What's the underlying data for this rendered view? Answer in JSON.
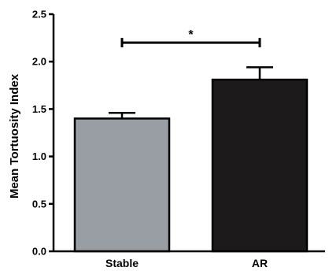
{
  "chart_data": {
    "type": "bar",
    "categories": [
      "Stable",
      "AR"
    ],
    "values": [
      1.4,
      1.81
    ],
    "errors": [
      0.06,
      0.13
    ],
    "colors": [
      "#999ea4",
      "#1d1a1c"
    ],
    "ylabel": "Mean Tortuosity Index",
    "xlabel": "",
    "ylim": [
      0,
      2.5
    ],
    "yticks": [
      "0.0",
      "0.5",
      "1.0",
      "1.5",
      "2.0",
      "2.5"
    ],
    "grid": false,
    "significance": {
      "from": "Stable",
      "to": "AR",
      "y": 2.2,
      "label": "*"
    }
  }
}
